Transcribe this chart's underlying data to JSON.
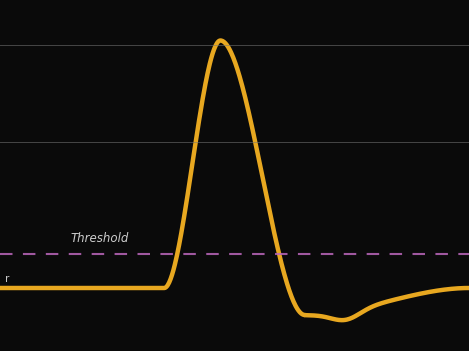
{
  "background_color": "#0a0a0a",
  "curve_color": "#E8A820",
  "threshold_color": "#BB66BB",
  "gridline_color": "#777777",
  "text_color": "#cccccc",
  "threshold_label": "Threshold",
  "resting_label": "r",
  "threshold_y": -55,
  "resting_y": -70,
  "peak_y": 40,
  "hyperpolar_y": -82,
  "gridline_y1": 38,
  "gridline_y2": -5,
  "ylim": [
    -98,
    58
  ],
  "xlim": [
    0,
    10
  ]
}
